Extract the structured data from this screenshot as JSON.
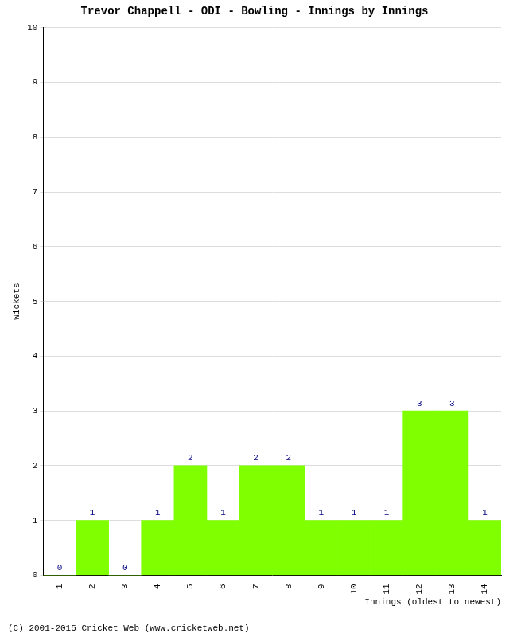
{
  "chart_data": {
    "type": "bar",
    "title": "Trevor Chappell - ODI - Bowling - Innings by Innings",
    "x_label": "Innings (oldest to newest)",
    "y_label": "Wickets",
    "annotations": [
      "(C) 2001-2015 Cricket Web (www.cricketweb.net)"
    ],
    "categories": [
      "1",
      "2",
      "3",
      "4",
      "5",
      "6",
      "7",
      "8",
      "9",
      "10",
      "11",
      "12",
      "13",
      "14"
    ],
    "values": [
      0,
      1,
      0,
      1,
      2,
      1,
      2,
      2,
      1,
      1,
      1,
      3,
      3,
      1
    ],
    "color": "#80ff00",
    "ylim": [
      0,
      10
    ],
    "yticks": [
      0,
      1,
      2,
      3,
      4,
      5,
      6,
      7,
      8,
      9,
      10
    ],
    "grid": true,
    "data_labels": true
  }
}
